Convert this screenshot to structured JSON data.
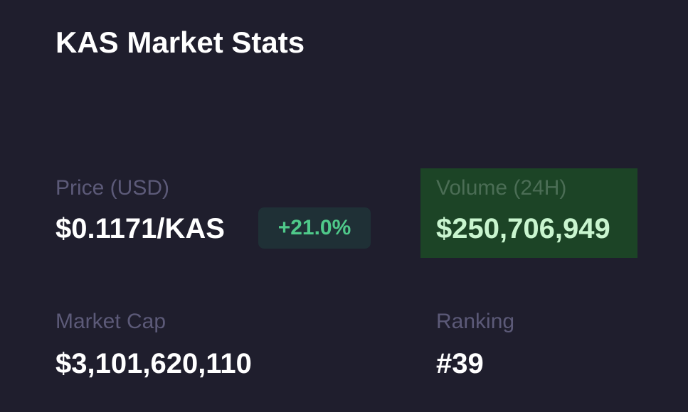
{
  "header": {
    "title": "KAS Market Stats"
  },
  "stats": [
    {
      "label": "Price (USD)",
      "value": "$0.1171/KAS",
      "change": "+21.0%"
    },
    {
      "label": "Volume (24H)",
      "value": "$250,706,949"
    },
    {
      "label": "Market Cap",
      "value": "$3,101,620,110"
    },
    {
      "label": "Ranking",
      "value": "#39"
    }
  ]
}
